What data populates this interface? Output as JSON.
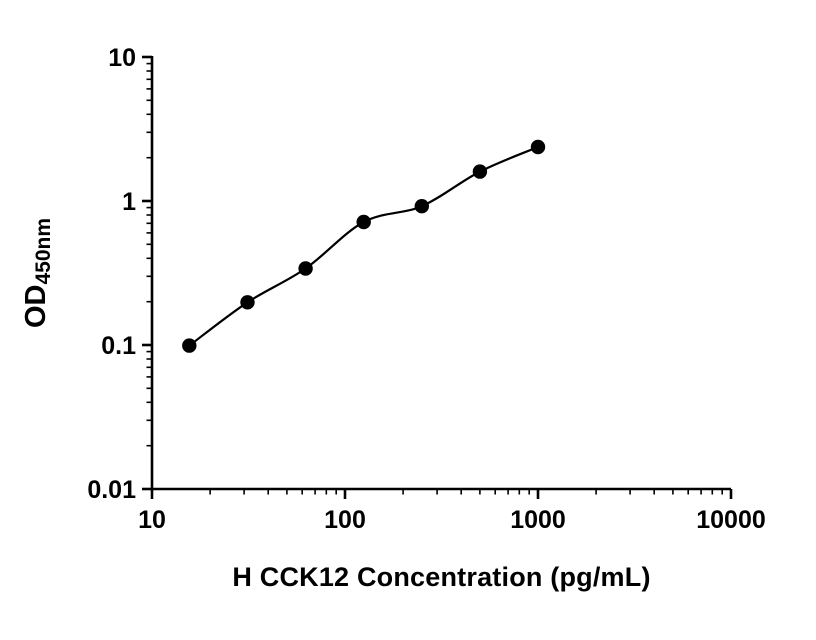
{
  "chart_data": {
    "type": "scatter",
    "title": "",
    "xlabel": "H CCK12 Concentration (pg/mL)",
    "ylabel": "OD",
    "ylabel_sub": "450nm",
    "x": [
      15.6,
      31.25,
      62.5,
      125,
      250,
      500,
      1000
    ],
    "y": [
      0.099,
      0.198,
      0.34,
      0.715,
      0.92,
      1.6,
      2.37
    ],
    "xlim": [
      10,
      10000
    ],
    "ylim": [
      0.01,
      10
    ],
    "xscale": "log",
    "yscale": "log",
    "x_ticks": [
      10,
      100,
      1000,
      10000
    ],
    "x_tick_labels": [
      "10",
      "100",
      "1000",
      "10000"
    ],
    "y_ticks": [
      0.01,
      0.1,
      1,
      10
    ],
    "y_tick_labels": [
      "0.01",
      "0.1",
      "1",
      "10"
    ],
    "grid": false,
    "legend": false,
    "line_through_points": true,
    "axis_color": "#000000",
    "line_color": "#000000",
    "marker_color": "#000000",
    "background_color": "#ffffff"
  }
}
